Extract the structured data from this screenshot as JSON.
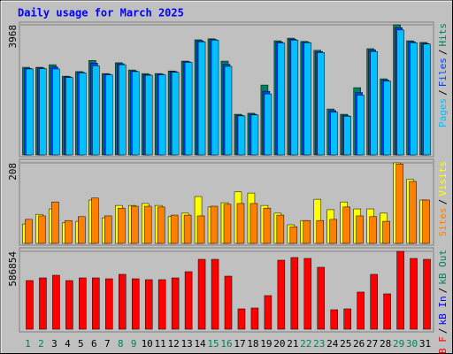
{
  "chart_data": [
    {
      "type": "bar",
      "title": "Daily usage for March 2025",
      "legend_separator": "/",
      "ylim": [
        0,
        3968
      ],
      "yticks": [
        3968
      ],
      "series": [
        {
          "name": "Pages",
          "color": "#00c0ff",
          "values": [
            2620,
            2630,
            2620,
            2360,
            2500,
            2720,
            2440,
            2750,
            2540,
            2430,
            2440,
            2520,
            2820,
            3450,
            3500,
            2700,
            1190,
            1220,
            1860,
            3410,
            3500,
            3420,
            3120,
            1300,
            1180,
            1820,
            3150,
            2250,
            3810,
            3420,
            3380
          ]
        },
        {
          "name": "Files",
          "color": "#0040ff",
          "values": [
            2640,
            2650,
            2680,
            2380,
            2520,
            2800,
            2460,
            2780,
            2560,
            2450,
            2460,
            2540,
            2840,
            3480,
            3520,
            2760,
            1210,
            1240,
            1940,
            3440,
            3530,
            3440,
            3150,
            1350,
            1200,
            1900,
            3200,
            2280,
            3880,
            3450,
            3400
          ]
        },
        {
          "name": "Hits",
          "color": "#00805c",
          "values": [
            2672,
            2672,
            2750,
            2400,
            2540,
            2880,
            2480,
            2810,
            2590,
            2480,
            2480,
            2560,
            2860,
            3510,
            3540,
            2860,
            1240,
            1270,
            2130,
            3480,
            3560,
            3460,
            3190,
            1400,
            1240,
            2050,
            3240,
            2320,
            3968,
            3480,
            3430
          ]
        }
      ]
    },
    {
      "type": "bar",
      "legend_separator": "/",
      "ylim": [
        0,
        208
      ],
      "yticks": [
        208
      ],
      "series": [
        {
          "name": "Sites",
          "color": "#ff8000",
          "values": [
            62,
            71,
            107,
            59,
            69,
            117,
            71,
            91,
            96,
            96,
            94,
            73,
            73,
            71,
            96,
            101,
            103,
            103,
            91,
            73,
            43,
            59,
            59,
            62,
            94,
            71,
            69,
            57,
            205,
            160,
            112
          ]
        },
        {
          "name": "Visits",
          "color": "#ffff00",
          "values": [
            50,
            75,
            89,
            53,
            57,
            112,
            66,
            98,
            98,
            103,
            98,
            69,
            78,
            121,
            94,
            105,
            133,
            130,
            98,
            78,
            48,
            59,
            114,
            87,
            107,
            89,
            89,
            78,
            208,
            165,
            112
          ]
        }
      ]
    },
    {
      "type": "bar",
      "legend_separator": "/",
      "ylim": [
        0,
        586854
      ],
      "yticks": [
        586854
      ],
      "categories": [
        "1",
        "2",
        "3",
        "4",
        "5",
        "6",
        "7",
        "8",
        "9",
        "10",
        "11",
        "12",
        "13",
        "14",
        "15",
        "16",
        "17",
        "18",
        "19",
        "20",
        "21",
        "22",
        "23",
        "24",
        "25",
        "26",
        "27",
        "28",
        "29",
        "30",
        "31"
      ],
      "category_colors": [
        "#00805c",
        "#00805c",
        "#000000",
        "#000000",
        "#000000",
        "#000000",
        "#000000",
        "#00805c",
        "#00805c",
        "#000000",
        "#000000",
        "#000000",
        "#000000",
        "#000000",
        "#00805c",
        "#00805c",
        "#000000",
        "#000000",
        "#000000",
        "#000000",
        "#000000",
        "#00805c",
        "#00805c",
        "#000000",
        "#000000",
        "#000000",
        "#000000",
        "#000000",
        "#00805c",
        "#00805c",
        "#000000"
      ],
      "series": [
        {
          "name": "kB F",
          "color": "#ff0000",
          "values": [
            366800,
            386800,
            406800,
            366800,
            386800,
            386800,
            380100,
            413500,
            380100,
            373400,
            373400,
            386800,
            433500,
            526800,
            526800,
            400100,
            153400,
            160100,
            253400,
            520200,
            540200,
            533500,
            466800,
            146700,
            153400,
            280100,
            413500,
            266700,
            586854,
            533500,
            526800
          ]
        },
        {
          "name": "kB In",
          "color": "#0000ff",
          "values": [
            0,
            0,
            0,
            0,
            0,
            0,
            0,
            0,
            0,
            0,
            0,
            0,
            0,
            0,
            0,
            0,
            0,
            0,
            0,
            0,
            0,
            0,
            0,
            0,
            0,
            0,
            0,
            0,
            0,
            0,
            0
          ]
        },
        {
          "name": "kB Out",
          "color": "#00805c",
          "values": [
            0,
            0,
            0,
            0,
            0,
            0,
            0,
            0,
            0,
            0,
            0,
            0,
            0,
            0,
            0,
            0,
            0,
            0,
            0,
            0,
            0,
            0,
            0,
            0,
            0,
            0,
            0,
            0,
            0,
            0,
            0
          ]
        }
      ]
    }
  ]
}
